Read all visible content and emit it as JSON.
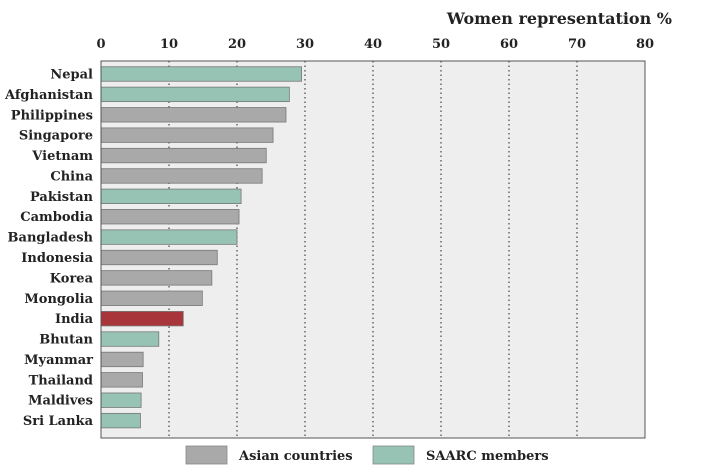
{
  "chart_data": {
    "type": "bar",
    "orientation": "horizontal",
    "xlabel": "Women representation %",
    "xlabel_position": "top-right",
    "xlim": [
      0,
      80
    ],
    "xticks": [
      0,
      10,
      20,
      30,
      40,
      50,
      60,
      70,
      80
    ],
    "grid": "vertical-dotted",
    "legend_position": "bottom-center",
    "colors": {
      "asian": "#a9a9a9",
      "saarc": "#96c3b4",
      "highlight": "#a8353a",
      "plot_bg": "#eeeeee"
    },
    "categories": [
      "Nepal",
      "Afghanistan",
      "Philippines",
      "Singapore",
      "Vietnam",
      "China",
      "Pakistan",
      "Cambodia",
      "Bangladesh",
      "Indonesia",
      "Korea",
      "Mongolia",
      "India",
      "Bhutan",
      "Myanmar",
      "Thailand",
      "Maldives",
      "Sri Lanka"
    ],
    "values": [
      29.5,
      27.7,
      27.2,
      25.3,
      24.3,
      23.7,
      20.6,
      20.3,
      20.0,
      17.1,
      16.3,
      14.9,
      12.1,
      8.5,
      6.2,
      6.1,
      5.9,
      5.8
    ],
    "groups": [
      "saarc",
      "saarc",
      "asian",
      "asian",
      "asian",
      "asian",
      "saarc",
      "asian",
      "saarc",
      "asian",
      "asian",
      "asian",
      "highlight",
      "saarc",
      "asian",
      "asian",
      "saarc",
      "saarc"
    ],
    "legend": [
      {
        "label": "Asian countries",
        "color_key": "asian"
      },
      {
        "label": "SAARC members",
        "color_key": "saarc"
      }
    ]
  }
}
